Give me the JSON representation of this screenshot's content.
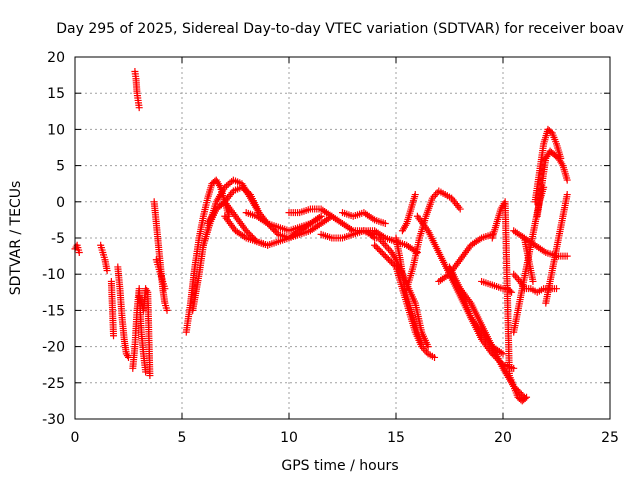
{
  "chart_data": {
    "type": "scatter",
    "title": "Day 295 of 2025, Sidereal Day-to-day VTEC variation (SDTVAR) for receiver boav",
    "xlabel": "GPS time / hours",
    "ylabel": "SDTVAR / TECUs",
    "xlim": [
      0,
      25
    ],
    "ylim": [
      -30,
      20
    ],
    "xticks": [
      0,
      5,
      10,
      15,
      20,
      25
    ],
    "yticks": [
      -30,
      -25,
      -20,
      -15,
      -10,
      -5,
      0,
      5,
      10,
      15,
      20
    ],
    "grid": true,
    "marker": "+",
    "color": "#ff0000",
    "series": [
      {
        "name": "s1",
        "x": [
          0.0,
          0.1,
          0.2
        ],
        "y": [
          -6.5,
          -6.0,
          -7.0
        ]
      },
      {
        "name": "s2",
        "x": [
          1.2,
          1.3,
          1.4,
          1.5
        ],
        "y": [
          -6.0,
          -7.0,
          -8.0,
          -9.5
        ]
      },
      {
        "name": "s3",
        "x": [
          1.7,
          1.8
        ],
        "y": [
          -11.0,
          -18.5
        ]
      },
      {
        "name": "s4",
        "x": [
          2.0,
          2.1,
          2.2,
          2.3,
          2.4,
          2.5
        ],
        "y": [
          -9.0,
          -12.0,
          -16.0,
          -19.0,
          -21.0,
          -21.5
        ]
      },
      {
        "name": "s5",
        "x": [
          2.8,
          2.85,
          2.9,
          2.95,
          3.0
        ],
        "y": [
          18.0,
          17.0,
          15.0,
          14.0,
          13.0
        ]
      },
      {
        "name": "s6",
        "x": [
          2.7,
          2.8,
          2.9,
          3.0,
          3.1,
          3.2,
          3.3
        ],
        "y": [
          -23.0,
          -20.0,
          -15.0,
          -12.0,
          -18.0,
          -21.0,
          -23.5
        ]
      },
      {
        "name": "s7",
        "x": [
          3.0,
          3.1,
          3.2,
          3.3,
          3.4,
          3.5
        ],
        "y": [
          -13.0,
          -14.0,
          -15.0,
          -12.0,
          -12.5,
          -24.0
        ]
      },
      {
        "name": "s8",
        "x": [
          3.7,
          3.8,
          3.9,
          4.0,
          4.1,
          4.2,
          4.3
        ],
        "y": [
          0.0,
          -3.0,
          -6.0,
          -9.0,
          -12.0,
          -14.0,
          -15.0
        ]
      },
      {
        "name": "s9",
        "x": [
          3.8,
          3.9,
          4.0,
          4.1,
          4.2
        ],
        "y": [
          -8.0,
          -9.0,
          -10.0,
          -11.0,
          -12.0
        ]
      },
      {
        "name": "s10",
        "x": [
          5.2,
          5.4,
          5.6,
          5.8,
          6.0,
          6.2,
          6.4,
          6.6,
          6.8,
          7.0,
          7.2
        ],
        "y": [
          -18.0,
          -14.0,
          -9.0,
          -5.0,
          -2.0,
          0.5,
          2.5,
          3.0,
          2.0,
          0.0,
          -2.0
        ]
      },
      {
        "name": "s11",
        "x": [
          5.5,
          5.8,
          6.0,
          6.3,
          6.6,
          7.0,
          7.5,
          8.0,
          8.5,
          9.0
        ],
        "y": [
          -15.0,
          -10.0,
          -6.0,
          -3.0,
          -1.0,
          0.0,
          -2.0,
          -4.0,
          -5.5,
          -6.0
        ]
      },
      {
        "name": "s12",
        "x": [
          6.0,
          6.3,
          6.6,
          7.0,
          7.4,
          7.8,
          8.2,
          8.6
        ],
        "y": [
          -6.0,
          -3.0,
          0.0,
          2.0,
          3.0,
          2.5,
          0.5,
          -1.5
        ]
      },
      {
        "name": "s13",
        "x": [
          6.2,
          6.6,
          7.0,
          7.4,
          7.8,
          8.2,
          8.6,
          9.0,
          9.5,
          10.0,
          10.5,
          11.0,
          11.5
        ],
        "y": [
          -3.0,
          -1.0,
          0.0,
          1.5,
          2.0,
          1.0,
          -1.5,
          -3.0,
          -4.5,
          -5.0,
          -4.0,
          -3.0,
          -2.0
        ]
      },
      {
        "name": "s14",
        "x": [
          7.0,
          7.5,
          8.0,
          8.5,
          9.0,
          9.5,
          10.0,
          10.5,
          11.0,
          11.5,
          12.0
        ],
        "y": [
          -2.0,
          -4.0,
          -5.0,
          -5.5,
          -6.0,
          -5.5,
          -5.0,
          -4.5,
          -4.0,
          -3.0,
          -2.0
        ]
      },
      {
        "name": "s15",
        "x": [
          8.0,
          8.5,
          9.0,
          9.5,
          10.0,
          10.5,
          11.0,
          11.5
        ],
        "y": [
          -1.5,
          -2.0,
          -3.0,
          -3.5,
          -4.0,
          -3.5,
          -3.0,
          -2.0
        ]
      },
      {
        "name": "s16",
        "x": [
          10.0,
          10.5,
          11.0,
          11.5,
          12.0,
          12.5,
          13.0,
          13.5,
          14.0
        ],
        "y": [
          -1.5,
          -1.5,
          -1.0,
          -1.0,
          -2.0,
          -3.0,
          -4.0,
          -4.0,
          -4.5
        ]
      },
      {
        "name": "s17",
        "x": [
          11.5,
          12.0,
          12.5,
          13.0,
          13.5,
          14.0,
          14.5,
          15.0,
          15.5,
          16.0
        ],
        "y": [
          -4.5,
          -5.0,
          -5.0,
          -4.5,
          -4.0,
          -4.0,
          -5.0,
          -5.5,
          -6.0,
          -7.0
        ]
      },
      {
        "name": "s18",
        "x": [
          12.5,
          13.0,
          13.5,
          14.0,
          14.5
        ],
        "y": [
          -1.5,
          -2.0,
          -1.5,
          -2.5,
          -3.0
        ]
      },
      {
        "name": "s19",
        "x": [
          13.5,
          13.8,
          14.0,
          14.2,
          14.5,
          14.8,
          15.0,
          15.3,
          15.6,
          15.9,
          16.2,
          16.5
        ],
        "y": [
          -4.0,
          -4.5,
          -5.0,
          -5.0,
          -6.0,
          -7.0,
          -8.0,
          -10.0,
          -12.0,
          -14.0,
          -18.0,
          -20.0
        ]
      },
      {
        "name": "s20",
        "x": [
          14.0,
          14.5,
          15.0,
          15.3,
          15.6,
          15.9,
          16.2,
          16.5,
          16.8
        ],
        "y": [
          -6.0,
          -7.5,
          -9.0,
          -12.0,
          -15.0,
          -18.0,
          -20.0,
          -21.0,
          -21.5
        ]
      },
      {
        "name": "s21",
        "x": [
          15.0,
          15.2,
          15.4,
          15.6,
          15.8,
          16.0,
          16.2
        ],
        "y": [
          -5.0,
          -8.0,
          -12.0,
          -14.0,
          -16.0,
          -18.0,
          -19.5
        ]
      },
      {
        "name": "s22",
        "x": [
          15.3,
          15.5,
          15.7,
          15.9
        ],
        "y": [
          -4.0,
          -3.0,
          -1.0,
          1.0
        ]
      },
      {
        "name": "s23",
        "x": [
          15.5,
          15.8,
          16.1,
          16.4,
          16.7,
          17.0,
          17.3,
          17.6,
          18.0
        ],
        "y": [
          -12.0,
          -9.0,
          -5.0,
          -2.0,
          0.5,
          1.5,
          1.0,
          0.5,
          -1.0
        ]
      },
      {
        "name": "s24",
        "x": [
          16.0,
          16.5,
          17.0,
          17.5,
          18.0,
          18.5,
          19.0,
          19.5,
          20.0
        ],
        "y": [
          -2.0,
          -4.0,
          -7.0,
          -10.0,
          -13.0,
          -16.0,
          -18.0,
          -20.0,
          -21.0
        ]
      },
      {
        "name": "s25",
        "x": [
          17.0,
          17.5,
          18.0,
          18.5,
          19.0,
          19.5
        ],
        "y": [
          -11.0,
          -10.0,
          -8.0,
          -6.0,
          -5.0,
          -4.5
        ]
      },
      {
        "name": "s26",
        "x": [
          17.5,
          18.0,
          18.5,
          19.0,
          19.5,
          20.0,
          20.5
        ],
        "y": [
          -9.0,
          -12.0,
          -16.0,
          -19.0,
          -21.0,
          -22.5,
          -23.0
        ]
      },
      {
        "name": "s27",
        "x": [
          18.0,
          18.5,
          19.0,
          19.5,
          20.0,
          20.5,
          21.0
        ],
        "y": [
          -12.0,
          -14.0,
          -17.0,
          -20.0,
          -23.0,
          -25.5,
          -27.0
        ]
      },
      {
        "name": "s28",
        "x": [
          19.0,
          19.5,
          20.0,
          20.2,
          20.4
        ],
        "y": [
          -11.0,
          -11.5,
          -12.0,
          -12.0,
          -12.5
        ]
      },
      {
        "name": "s29",
        "x": [
          19.5,
          19.7,
          19.9,
          20.1,
          20.3,
          20.5,
          20.7,
          20.9,
          21.1
        ],
        "y": [
          -5.0,
          -3.0,
          -1.0,
          0.0,
          -24.0,
          -25.5,
          -27.0,
          -27.5,
          -27.0
        ]
      },
      {
        "name": "s30",
        "x": [
          20.5,
          20.7,
          20.9,
          21.1,
          21.3,
          21.5,
          21.7,
          21.9
        ],
        "y": [
          -18.0,
          -15.0,
          -12.0,
          -9.0,
          -6.0,
          -3.0,
          0.0,
          2.0
        ]
      },
      {
        "name": "s31",
        "x": [
          20.5,
          20.8,
          21.0,
          21.3,
          21.6,
          21.9,
          22.2,
          22.5
        ],
        "y": [
          -10.0,
          -11.0,
          -12.0,
          -12.0,
          -12.5,
          -12.0,
          -12.0,
          -12.0
        ]
      },
      {
        "name": "s32",
        "x": [
          20.5,
          21.0,
          21.5,
          22.0,
          22.5,
          23.0
        ],
        "y": [
          -4.0,
          -5.0,
          -6.0,
          -7.0,
          -7.5,
          -7.5
        ]
      },
      {
        "name": "s33",
        "x": [
          21.5,
          21.7,
          21.9,
          22.1,
          22.3,
          22.5,
          22.7
        ],
        "y": [
          0.0,
          4.0,
          8.0,
          10.0,
          9.5,
          8.0,
          6.0
        ]
      },
      {
        "name": "s34",
        "x": [
          21.6,
          21.8,
          22.0,
          22.2,
          22.4,
          22.6,
          22.8,
          23.0
        ],
        "y": [
          -2.0,
          2.0,
          6.0,
          7.0,
          6.5,
          6.0,
          5.0,
          3.0
        ]
      },
      {
        "name": "s35",
        "x": [
          22.0,
          22.2,
          22.4,
          22.6,
          22.8,
          23.0
        ],
        "y": [
          -14.0,
          -11.0,
          -8.0,
          -5.0,
          -2.0,
          1.0
        ]
      },
      {
        "name": "s36",
        "x": [
          21.0,
          21.2,
          21.4
        ],
        "y": [
          -5.0,
          -8.0,
          -11.0
        ]
      }
    ]
  }
}
